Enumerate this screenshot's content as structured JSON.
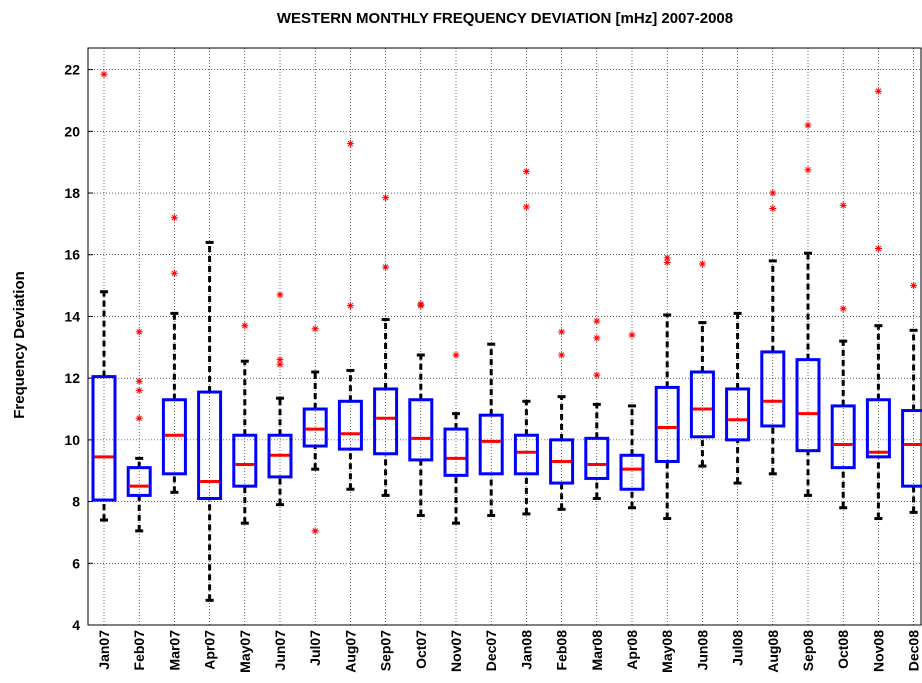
{
  "chart_data": {
    "type": "box",
    "title": "WESTERN MONTHLY FREQUENCY DEVIATION [mHz] 2007-2008",
    "y_label": "Frequency Deviation",
    "categories": [
      "Jan07",
      "Feb07",
      "Mar07",
      "Apr07",
      "May07",
      "Jun07",
      "Jul07",
      "Aug07",
      "Sep07",
      "Oct07",
      "Nov07",
      "Dec07",
      "Jan08",
      "Feb08",
      "Mar08",
      "Apr08",
      "May08",
      "Jun08",
      "Jul08",
      "Aug08",
      "Sep08",
      "Oct08",
      "Nov08",
      "Dec08"
    ],
    "whisker_low": [
      7.4,
      7.05,
      8.3,
      4.8,
      7.3,
      7.9,
      9.05,
      8.4,
      8.2,
      7.55,
      7.3,
      7.55,
      7.6,
      7.75,
      8.1,
      7.8,
      7.45,
      9.15,
      8.6,
      8.9,
      8.2,
      7.8,
      7.45,
      7.65
    ],
    "q1": [
      8.05,
      8.2,
      8.9,
      8.1,
      8.5,
      8.8,
      9.8,
      9.7,
      9.55,
      9.35,
      8.85,
      8.9,
      8.9,
      8.6,
      8.75,
      8.4,
      9.3,
      10.1,
      10.0,
      10.45,
      9.65,
      9.1,
      9.45,
      8.5
    ],
    "median": [
      9.45,
      8.5,
      10.15,
      8.65,
      9.2,
      9.5,
      10.35,
      10.2,
      10.7,
      10.05,
      9.4,
      9.95,
      9.6,
      9.3,
      9.2,
      9.05,
      10.4,
      11.0,
      10.65,
      11.25,
      10.85,
      9.85,
      9.6,
      9.85
    ],
    "q3": [
      12.05,
      9.1,
      11.3,
      11.55,
      10.15,
      10.15,
      11.0,
      11.25,
      11.65,
      11.3,
      10.35,
      10.8,
      10.15,
      10.0,
      10.05,
      9.5,
      11.7,
      12.2,
      11.65,
      12.85,
      12.6,
      11.1,
      11.3,
      10.95
    ],
    "whisker_high": [
      14.8,
      9.4,
      14.1,
      16.4,
      12.55,
      11.35,
      12.2,
      12.25,
      13.9,
      12.75,
      10.85,
      13.1,
      11.25,
      11.4,
      11.15,
      11.1,
      14.05,
      13.8,
      14.1,
      15.8,
      16.05,
      13.2,
      13.7,
      13.55
    ],
    "outliers": [
      [
        21.85
      ],
      [
        13.5,
        11.9,
        11.6,
        10.7
      ],
      [
        17.2,
        15.4
      ],
      [],
      [
        13.7
      ],
      [
        14.7,
        12.6,
        12.45
      ],
      [
        13.6,
        7.05
      ],
      [
        19.6,
        14.35
      ],
      [
        17.85,
        15.6
      ],
      [
        14.4,
        14.35
      ],
      [
        12.75
      ],
      [],
      [
        18.7,
        17.55
      ],
      [
        13.5,
        12.75
      ],
      [
        13.85,
        13.3,
        12.1
      ],
      [
        13.4
      ],
      [
        15.9,
        15.75
      ],
      [
        15.7
      ],
      [],
      [
        18.0,
        17.5
      ],
      [
        20.2,
        18.75
      ],
      [
        17.6,
        14.25
      ],
      [
        21.3,
        16.2
      ],
      [
        15.0
      ]
    ],
    "box_color": "#0000ff",
    "median_color": "#ff0000",
    "whisker_color": "#000000",
    "outlier_color": "#ff0000",
    "ylim": [
      4,
      22.7
    ],
    "yticks": [
      4,
      6,
      8,
      10,
      12,
      14,
      16,
      18,
      20,
      22
    ],
    "grid": true
  }
}
